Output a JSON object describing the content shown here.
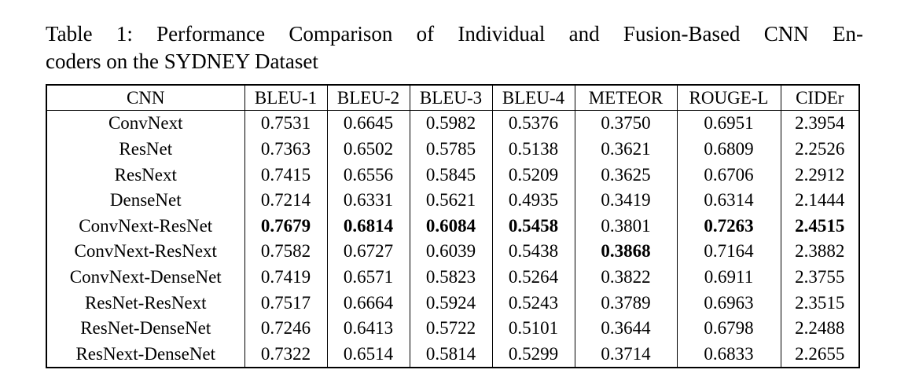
{
  "caption": {
    "line1": "Table 1: Performance Comparison of Individual and Fusion-Based CNN En-",
    "line2": "coders on the SYDNEY Dataset"
  },
  "table": {
    "headers": [
      "CNN",
      "BLEU-1",
      "BLEU-2",
      "BLEU-3",
      "BLEU-4",
      "METEOR",
      "ROUGE-L",
      "CIDEr"
    ],
    "rows": [
      [
        "ConvNext",
        "0.7531",
        "0.6645",
        "0.5982",
        "0.5376",
        "0.3750",
        "0.6951",
        "2.3954"
      ],
      [
        "ResNet",
        "0.7363",
        "0.6502",
        "0.5785",
        "0.5138",
        "0.3621",
        "0.6809",
        "2.2526"
      ],
      [
        "ResNext",
        "0.7415",
        "0.6556",
        "0.5845",
        "0.5209",
        "0.3625",
        "0.6706",
        "2.2912"
      ],
      [
        "DenseNet",
        "0.7214",
        "0.6331",
        "0.5621",
        "0.4935",
        "0.3419",
        "0.6314",
        "2.1444"
      ],
      [
        "ConvNext-ResNet",
        "0.7679",
        "0.6814",
        "0.6084",
        "0.5458",
        "0.3801",
        "0.7263",
        "2.4515"
      ],
      [
        "ConvNext-ResNext",
        "0.7582",
        "0.6727",
        "0.6039",
        "0.5438",
        "0.3868",
        "0.7164",
        "2.3882"
      ],
      [
        "ConvNext-DenseNet",
        "0.7419",
        "0.6571",
        "0.5823",
        "0.5264",
        "0.3822",
        "0.6911",
        "2.3755"
      ],
      [
        "ResNet-ResNext",
        "0.7517",
        "0.6664",
        "0.5924",
        "0.5243",
        "0.3789",
        "0.6963",
        "2.3515"
      ],
      [
        "ResNet-DenseNet",
        "0.7246",
        "0.6413",
        "0.5722",
        "0.5101",
        "0.3644",
        "0.6798",
        "2.2488"
      ],
      [
        "ResNext-DenseNet",
        "0.7322",
        "0.6514",
        "0.5814",
        "0.5299",
        "0.3714",
        "0.6833",
        "2.2655"
      ]
    ],
    "bold_cells": [
      [
        4,
        1
      ],
      [
        4,
        2
      ],
      [
        4,
        3
      ],
      [
        4,
        4
      ],
      [
        4,
        6
      ],
      [
        4,
        7
      ],
      [
        5,
        5
      ]
    ]
  },
  "chart_data": {
    "type": "table",
    "title": "Table 1: Performance Comparison of Individual and Fusion-Based CNN Encoders on the SYDNEY Dataset",
    "columns": [
      "CNN",
      "BLEU-1",
      "BLEU-2",
      "BLEU-3",
      "BLEU-4",
      "METEOR",
      "ROUGE-L",
      "CIDEr"
    ],
    "rows": [
      [
        "ConvNext",
        0.7531,
        0.6645,
        0.5982,
        0.5376,
        0.375,
        0.6951,
        2.3954
      ],
      [
        "ResNet",
        0.7363,
        0.6502,
        0.5785,
        0.5138,
        0.3621,
        0.6809,
        2.2526
      ],
      [
        "ResNext",
        0.7415,
        0.6556,
        0.5845,
        0.5209,
        0.3625,
        0.6706,
        2.2912
      ],
      [
        "DenseNet",
        0.7214,
        0.6331,
        0.5621,
        0.4935,
        0.3419,
        0.6314,
        2.1444
      ],
      [
        "ConvNext-ResNet",
        0.7679,
        0.6814,
        0.6084,
        0.5458,
        0.3801,
        0.7263,
        2.4515
      ],
      [
        "ConvNext-ResNext",
        0.7582,
        0.6727,
        0.6039,
        0.5438,
        0.3868,
        0.7164,
        2.3882
      ],
      [
        "ConvNext-DenseNet",
        0.7419,
        0.6571,
        0.5823,
        0.5264,
        0.3822,
        0.6911,
        2.3755
      ],
      [
        "ResNet-ResNext",
        0.7517,
        0.6664,
        0.5924,
        0.5243,
        0.3789,
        0.6963,
        2.3515
      ],
      [
        "ResNet-DenseNet",
        0.7246,
        0.6413,
        0.5722,
        0.5101,
        0.3644,
        0.6798,
        2.2488
      ],
      [
        "ResNext-DenseNet",
        0.7322,
        0.6514,
        0.5814,
        0.5299,
        0.3714,
        0.6833,
        2.2655
      ]
    ],
    "bold_highlights": "Best value per metric is bold: ConvNext-ResNet row for BLEU-1..4, ROUGE-L, CIDEr; ConvNext-ResNext for METEOR"
  }
}
